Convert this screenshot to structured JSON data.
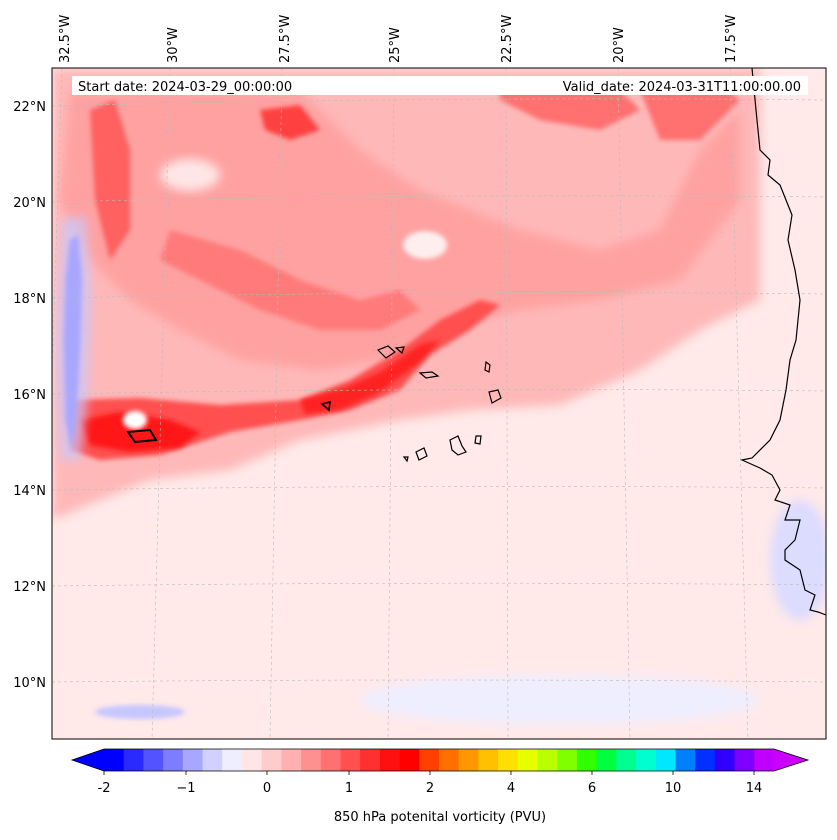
{
  "map": {
    "start_date_label": "Start date: 2024-03-29_00:00:00",
    "valid_date_label": "Valid_date: 2024-03-31T11:00:00.00",
    "longitude_labels": [
      "32.5°W",
      "30°W",
      "27.5°W",
      "25°W",
      "22.5°W",
      "20°W",
      "17.5°W"
    ],
    "latitude_labels": [
      "22°N",
      "20°N",
      "18°N",
      "16°N",
      "14°N",
      "12°N",
      "10°N"
    ],
    "background_color": "#ffe9e9",
    "coastline_color": "#000000"
  },
  "colorbar": {
    "title": "850 hPa potenital vorticity (PVU)",
    "tick_labels": [
      "-2",
      "−1",
      "0",
      "1",
      "2",
      "4",
      "6",
      "10",
      "14"
    ],
    "colors": [
      "#0000ff",
      "#2a2aff",
      "#5454ff",
      "#7d7dff",
      "#a7a7ff",
      "#d1d1ff",
      "#eeeeff",
      "#ffe6e6",
      "#ffcccc",
      "#ffb0b0",
      "#ff9090",
      "#ff7070",
      "#ff5050",
      "#ff3030",
      "#ff1010",
      "#ff0000",
      "#ff4000",
      "#ff7000",
      "#ff9800",
      "#ffc000",
      "#ffe000",
      "#e8ff00",
      "#b8ff00",
      "#80ff00",
      "#30ff00",
      "#00ff40",
      "#00ff90",
      "#00ffd0",
      "#00e8ff",
      "#0080ff",
      "#0030ff",
      "#3000ff",
      "#8000ff",
      "#c000ff"
    ],
    "min_extend_color": "#0000ff",
    "max_extend_color": "#cc00ff"
  }
}
